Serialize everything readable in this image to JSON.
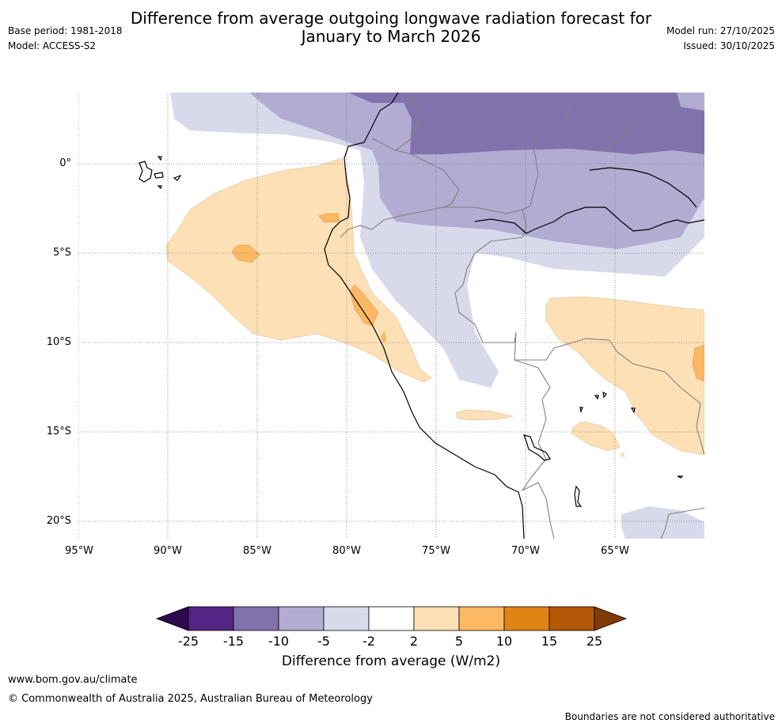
{
  "header": {
    "title_line1": "Difference from average outgoing longwave radiation forecast for",
    "title_line2": "January to March 2026",
    "base_period": "Base period: 1981-2018",
    "model": "Model: ACCESS-S2",
    "model_run": "Model run: 27/10/2025",
    "issued": "Issued: 30/10/2025"
  },
  "map": {
    "lat_ticks": [
      "0°",
      "5°S",
      "10°S",
      "15°S",
      "20°S"
    ],
    "lon_ticks": [
      "95°W",
      "90°W",
      "85°W",
      "80°W",
      "75°W",
      "70°W",
      "65°W"
    ]
  },
  "colorbar": {
    "ticks": [
      "-25",
      "-15",
      "-10",
      "-5",
      "-2",
      "2",
      "5",
      "10",
      "15",
      "25"
    ],
    "title": "Difference from average (W/m2)",
    "colors": {
      "lt_minus25": "#2d0a4e",
      "minus25_minus15": "#542585",
      "minus15_minus10": "#8073ac",
      "minus10_minus5": "#b2abd2",
      "minus5_minus2": "#d8daeb",
      "minus2_2": "#ffffff",
      "p2_5": "#fee0b6",
      "p5_10": "#fdb863",
      "p10_15": "#e08214",
      "p15_25": "#b35806",
      "gt25": "#7f3b08"
    }
  },
  "footer": {
    "website": "www.bom.gov.au/climate",
    "copyright": "© Commonwealth of Australia 2025, Australian Bureau of Meteorology",
    "disclaimer": "Boundaries are not considered authoritative"
  }
}
